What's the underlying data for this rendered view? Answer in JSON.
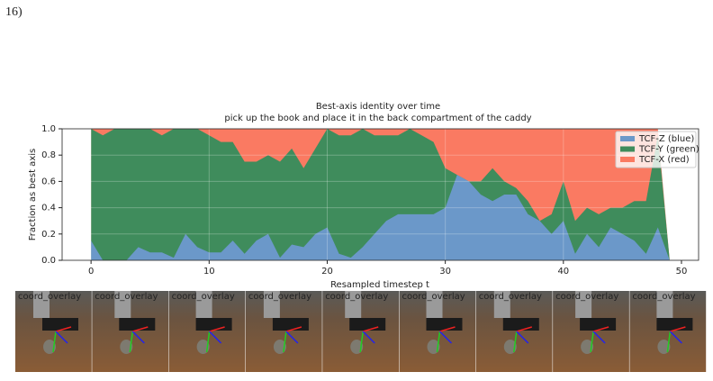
{
  "page_header": "16)",
  "chart_data": {
    "type": "stacked_area",
    "title": "Best-axis identity over time",
    "subtitle": "pick up the book and place it in the back compartment of the caddy",
    "xlabel": "Resampled timestep t",
    "ylabel": "Fraction as best axis",
    "x": [
      0,
      1,
      2,
      3,
      4,
      5,
      6,
      7,
      8,
      9,
      10,
      11,
      12,
      13,
      14,
      15,
      16,
      17,
      18,
      19,
      20,
      21,
      22,
      23,
      24,
      25,
      26,
      27,
      28,
      29,
      30,
      31,
      32,
      33,
      34,
      35,
      36,
      37,
      38,
      39,
      40,
      41,
      42,
      43,
      44,
      45,
      46,
      47,
      48,
      49
    ],
    "series": [
      {
        "name": "TCF-Z (blue)",
        "color": "#6b98c9",
        "values": [
          0.15,
          0,
          0,
          0,
          0.1,
          0.06,
          0.06,
          0.02,
          0.2,
          0.1,
          0.06,
          0.06,
          0.15,
          0.05,
          0.15,
          0.2,
          0.02,
          0.12,
          0.1,
          0.2,
          0.25,
          0.05,
          0.02,
          0.1,
          0.2,
          0.3,
          0.35,
          0.35,
          0.35,
          0.35,
          0.4,
          0.65,
          0.6,
          0.5,
          0.45,
          0.5,
          0.5,
          0.35,
          0.3,
          0.2,
          0.3,
          0.05,
          0.2,
          0.1,
          0.25,
          0.2,
          0.15,
          0.05,
          0.25,
          0
        ]
      },
      {
        "name": "TCF-Y (green)",
        "color": "#3f8c5c",
        "values": [
          0.85,
          0.95,
          1,
          1,
          0.9,
          0.94,
          0.89,
          0.98,
          0.8,
          0.9,
          0.89,
          0.84,
          0.75,
          0.7,
          0.6,
          0.6,
          0.73,
          0.73,
          0.6,
          0.65,
          0.75,
          0.9,
          0.93,
          0.9,
          0.75,
          0.65,
          0.6,
          0.65,
          0.6,
          0.55,
          0.3,
          0,
          0,
          0.1,
          0.25,
          0.1,
          0.05,
          0.1,
          0,
          0.15,
          0.3,
          0.25,
          0.2,
          0.25,
          0.15,
          0.2,
          0.3,
          0.4,
          0.7,
          0
        ]
      },
      {
        "name": "TCF-X (red)",
        "color": "#fa7a62",
        "values": [
          0,
          0.05,
          0,
          0,
          0,
          0,
          0.05,
          0,
          0,
          0,
          0.05,
          0.1,
          0.1,
          0.25,
          0.25,
          0.2,
          0.25,
          0.15,
          0.3,
          0.15,
          0,
          0.05,
          0.05,
          0,
          0.05,
          0.05,
          0.05,
          0,
          0.05,
          0.1,
          0.3,
          0.35,
          0.4,
          0.4,
          0.3,
          0.4,
          0.45,
          0.55,
          0.7,
          0.65,
          0.4,
          0.7,
          0.6,
          0.65,
          0.6,
          0.6,
          0.55,
          0.55,
          0.05,
          0
        ]
      }
    ],
    "xlim": [
      -2.45,
      51.45
    ],
    "ylim": [
      0,
      1
    ],
    "xticks": [
      0,
      10,
      20,
      30,
      40,
      50
    ],
    "yticks": [
      {
        "value": 0,
        "label": "0.0"
      },
      {
        "value": 0.2,
        "label": "0.2"
      },
      {
        "value": 0.4,
        "label": "0.4"
      },
      {
        "value": 0.6,
        "label": "0.6"
      },
      {
        "value": 0.8,
        "label": "0.8"
      },
      {
        "value": 1,
        "label": "1.0"
      }
    ],
    "grid": true,
    "legend": "upper right"
  },
  "frames": {
    "labels": [
      "coord_overlay",
      "coord_overlay",
      "coord_overlay",
      "coord_overlay",
      "coord_overlay",
      "coord_overlay",
      "coord_overlay",
      "coord_overlay",
      "coord_overlay"
    ]
  }
}
